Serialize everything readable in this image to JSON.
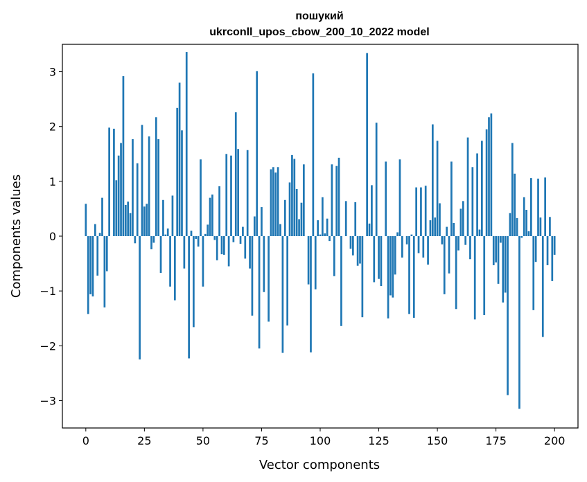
{
  "chart_data": {
    "type": "bar",
    "title": [
      "пошукий",
      "ukrconll_upos_cbow_200_10_2022 model"
    ],
    "xlabel": "Vector components",
    "ylabel": "Components values",
    "xlim": [
      -10,
      210
    ],
    "ylim": [
      -3.5,
      3.5
    ],
    "xticks": [
      0,
      25,
      50,
      75,
      100,
      125,
      150,
      175,
      200
    ],
    "yticks": [
      -3,
      -2,
      -1,
      0,
      1,
      2,
      3
    ],
    "xtick_labels": [
      "0",
      "25",
      "50",
      "75",
      "100",
      "125",
      "150",
      "175",
      "200"
    ],
    "ytick_labels": [
      "−3",
      "−2",
      "−1",
      "0",
      "1",
      "2",
      "3"
    ],
    "bar_color": "#1f77b4",
    "values": [
      0.59,
      -1.42,
      -1.06,
      -1.1,
      0.22,
      -0.72,
      0.06,
      0.7,
      -1.3,
      -0.64,
      1.98,
      0.0,
      1.96,
      1.02,
      1.47,
      1.7,
      2.92,
      0.57,
      0.63,
      0.42,
      1.77,
      -0.13,
      1.33,
      -2.25,
      2.03,
      0.54,
      0.59,
      1.82,
      -0.24,
      -0.12,
      2.17,
      1.77,
      -0.67,
      0.66,
      0.03,
      0.14,
      -0.92,
      0.74,
      -1.17,
      2.34,
      2.8,
      1.93,
      -0.59,
      3.36,
      -2.23,
      0.1,
      -1.66,
      -0.05,
      -0.19,
      1.4,
      -0.92,
      0.04,
      0.21,
      0.7,
      0.76,
      -0.07,
      -0.44,
      0.91,
      -0.33,
      -0.34,
      1.5,
      -0.55,
      1.47,
      -0.11,
      2.26,
      1.59,
      -0.14,
      0.17,
      -0.41,
      1.57,
      -0.59,
      -1.45,
      0.36,
      3.01,
      -2.05,
      0.53,
      -1.02,
      0.0,
      -1.56,
      1.22,
      1.26,
      1.16,
      1.26,
      0.22,
      -2.13,
      0.66,
      -1.63,
      0.98,
      1.48,
      1.41,
      0.86,
      0.31,
      0.61,
      1.31,
      0.0,
      -0.88,
      -2.12,
      2.97,
      -0.97,
      0.29,
      0.03,
      0.71,
      0.05,
      0.32,
      -0.09,
      1.31,
      -0.73,
      1.28,
      1.43,
      -1.64,
      0.0,
      0.64,
      0.0,
      -0.23,
      -0.35,
      0.62,
      -0.54,
      -0.5,
      -1.48,
      0.0,
      3.34,
      0.23,
      0.93,
      -0.84,
      2.07,
      -0.78,
      -0.91,
      0.0,
      1.36,
      -1.5,
      -1.08,
      -1.12,
      -0.7,
      0.07,
      1.4,
      -0.39,
      0.0,
      -0.15,
      -1.42,
      0.03,
      -1.49,
      0.89,
      -0.31,
      0.89,
      -0.39,
      0.92,
      -0.52,
      0.29,
      2.04,
      0.34,
      1.74,
      0.6,
      -0.15,
      -1.06,
      0.17,
      -0.68,
      1.36,
      0.24,
      -1.33,
      -0.26,
      0.5,
      0.64,
      -0.16,
      1.8,
      -0.42,
      1.26,
      -1.52,
      1.51,
      0.12,
      1.74,
      -1.44,
      1.95,
      2.17,
      2.24,
      -0.53,
      -0.48,
      -0.87,
      -0.12,
      -1.21,
      -1.03,
      -2.9,
      0.42,
      1.7,
      1.14,
      0.33,
      -3.15,
      -0.03,
      0.71,
      0.48,
      0.09,
      1.06,
      -1.35,
      -0.47,
      1.05,
      0.34,
      -1.84,
      1.07,
      -0.53,
      0.35,
      -0.82,
      -0.34
    ]
  }
}
